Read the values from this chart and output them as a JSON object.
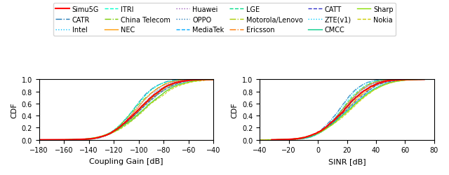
{
  "title": "",
  "legend_entries": [
    {
      "label": "Simu5G",
      "color": "#ff0000",
      "linestyle": "-",
      "linewidth": 1.5
    },
    {
      "label": "CATR",
      "color": "#1f77b4",
      "linestyle": "-.",
      "linewidth": 1.0
    },
    {
      "label": "Intel",
      "color": "#00bfff",
      "linestyle": ":",
      "linewidth": 1.0
    },
    {
      "label": "ITRI",
      "color": "#00ffcc",
      "linestyle": "--",
      "linewidth": 1.0
    },
    {
      "label": "China Telecom",
      "color": "#77cc00",
      "linestyle": "-.",
      "linewidth": 1.0
    },
    {
      "label": "NEC",
      "color": "#ff9900",
      "linestyle": "-",
      "linewidth": 1.0
    },
    {
      "label": "Huawei",
      "color": "#9b59b6",
      "linestyle": ":",
      "linewidth": 1.0
    },
    {
      "label": "OPPO",
      "color": "#1f77b4",
      "linestyle": ".",
      "linewidth": 1.0
    },
    {
      "label": "MediaTek",
      "color": "#00aaff",
      "linestyle": "--",
      "linewidth": 1.0
    },
    {
      "label": "LGE",
      "color": "#00dd88",
      "linestyle": "--",
      "linewidth": 1.0
    },
    {
      "label": "Motorola/Lenovo",
      "color": "#aacc00",
      "linestyle": "-.",
      "linewidth": 1.0
    },
    {
      "label": "Ericsson",
      "color": "#ff7700",
      "linestyle": "-.",
      "linewidth": 1.0
    },
    {
      "label": "CATT",
      "color": "#3333cc",
      "linestyle": "--",
      "linewidth": 1.0
    },
    {
      "label": "ZTE(v1)",
      "color": "#00ccff",
      "linestyle": ":",
      "linewidth": 1.0
    },
    {
      "label": "CMCC",
      "color": "#00cc88",
      "linestyle": "-",
      "linewidth": 1.0
    },
    {
      "label": "Sharp",
      "color": "#88dd00",
      "linestyle": "-",
      "linewidth": 1.0
    },
    {
      "label": "Nokia",
      "color": "#cccc00",
      "linestyle": "--",
      "linewidth": 1.0
    }
  ],
  "plot1": {
    "xlabel": "Coupling Gain [dB]",
    "ylabel": "CDF",
    "xlim": [
      -180,
      -40
    ],
    "ylim": [
      0,
      1.0
    ],
    "xticks": [
      -180,
      -160,
      -140,
      -120,
      -100,
      -80,
      -60,
      -40
    ],
    "yticks": [
      0.0,
      0.2,
      0.4,
      0.6,
      0.8,
      1.0
    ],
    "simu5g_mean": -100,
    "simu5g_std": 18,
    "others_mean_range": [
      -105,
      -95
    ],
    "others_std_range": [
      15,
      22
    ]
  },
  "plot2": {
    "xlabel": "SINR [dB]",
    "ylabel": "CDF",
    "xlim": [
      -40,
      80
    ],
    "ylim": [
      0,
      1.0
    ],
    "xticks": [
      -40,
      -20,
      0,
      20,
      40,
      60,
      80
    ],
    "yticks": [
      0.0,
      0.2,
      0.4,
      0.6,
      0.8,
      1.0
    ],
    "simu5g_mean": 18,
    "simu5g_std": 16,
    "others_mean_range": [
      15,
      22
    ],
    "others_std_range": [
      12,
      18
    ]
  },
  "background_color": "#ffffff",
  "legend_cols": 6,
  "fontsize": 7
}
